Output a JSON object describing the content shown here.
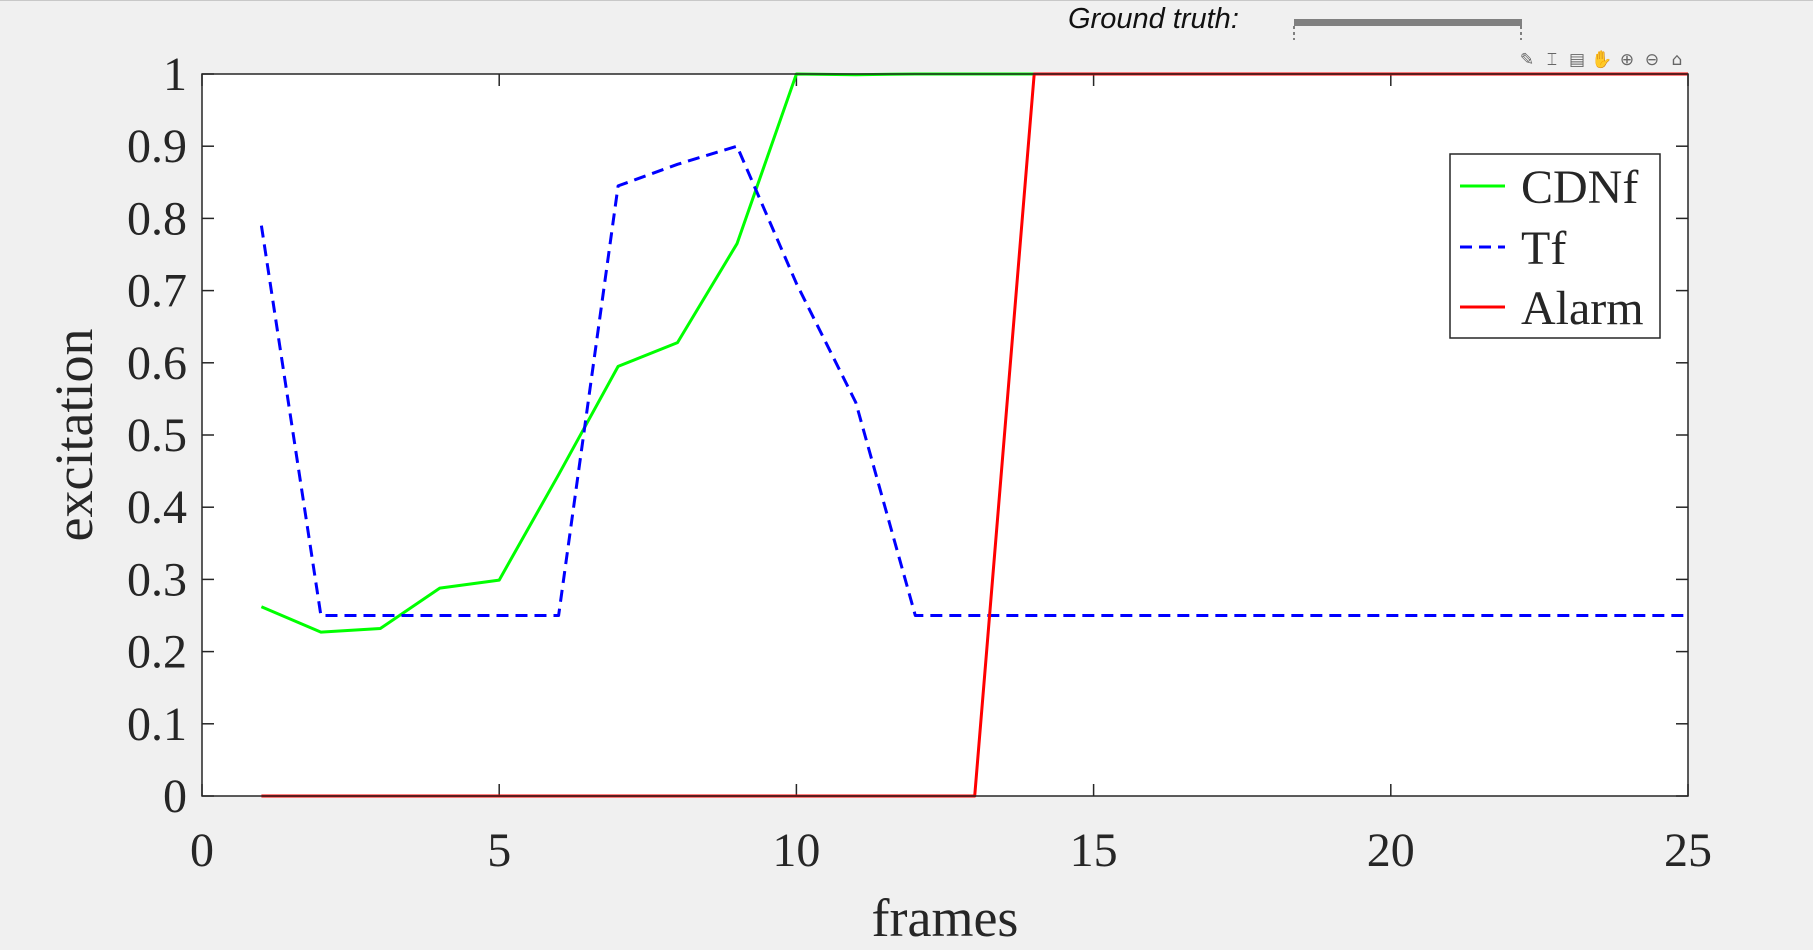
{
  "header": {
    "ground_truth_label": "Ground truth:"
  },
  "toolbar": {
    "icons": [
      {
        "name": "brush-icon",
        "glyph": "✎"
      },
      {
        "name": "datatip-icon",
        "glyph": "⌶"
      },
      {
        "name": "insert-legend-icon",
        "glyph": "▤"
      },
      {
        "name": "pan-hand-icon",
        "glyph": "✋"
      },
      {
        "name": "zoom-in-icon",
        "glyph": "⊕"
      },
      {
        "name": "zoom-out-icon",
        "glyph": "⊖"
      },
      {
        "name": "home-icon",
        "glyph": "⌂"
      }
    ]
  },
  "colors": {
    "background": "#f0f0f0",
    "plot_area": "#ffffff",
    "axis": "#262626",
    "ground_truth_bar": "#808080"
  },
  "chart_data": {
    "type": "line",
    "title": "",
    "xlabel": "frames",
    "ylabel": "excitation",
    "xlim": [
      0,
      25
    ],
    "ylim": [
      0,
      1
    ],
    "xticks": [
      0,
      5,
      10,
      15,
      20,
      25
    ],
    "yticks": [
      0,
      0.1,
      0.2,
      0.3,
      0.4,
      0.5,
      0.6,
      0.7,
      0.8,
      0.9,
      1
    ],
    "grid": false,
    "legend_position": "top-right",
    "ground_truth": {
      "x_start": 18.4,
      "x_end": 22.25
    },
    "series": [
      {
        "name": "CDNf",
        "color": "#00ff00",
        "style": "solid",
        "x": [
          1,
          2,
          3,
          4,
          5,
          6,
          7,
          8,
          9,
          10,
          11,
          12,
          13,
          14,
          15,
          16,
          17,
          18,
          19,
          20,
          21,
          22,
          23,
          24,
          25
        ],
        "y": [
          0.262,
          0.227,
          0.232,
          0.288,
          0.299,
          0.445,
          0.595,
          0.628,
          0.765,
          1.0,
          0.999,
          1.0,
          1.0,
          1.0,
          1.0,
          1.0,
          1.0,
          1.0,
          1.0,
          1.0,
          1.0,
          1.0,
          1.0,
          1.0,
          1.0
        ]
      },
      {
        "name": "Tf",
        "color": "#0000ff",
        "style": "dashed",
        "x": [
          1,
          2,
          3,
          4,
          5,
          6,
          7,
          8,
          9,
          10,
          11,
          12,
          13,
          14,
          15,
          16,
          17,
          18,
          19,
          20,
          21,
          22,
          23,
          24,
          25
        ],
        "y": [
          0.79,
          0.25,
          0.25,
          0.25,
          0.25,
          0.25,
          0.845,
          0.875,
          0.9,
          0.71,
          0.545,
          0.25,
          0.25,
          0.25,
          0.25,
          0.25,
          0.25,
          0.25,
          0.25,
          0.25,
          0.25,
          0.25,
          0.25,
          0.25,
          0.25
        ]
      },
      {
        "name": "Alarm",
        "color": "#ff0000",
        "style": "solid",
        "x": [
          1,
          2,
          3,
          4,
          5,
          6,
          7,
          8,
          9,
          10,
          11,
          12,
          13,
          14,
          15,
          16,
          17,
          18,
          19,
          20,
          21,
          22,
          23,
          24,
          25
        ],
        "y": [
          0,
          0,
          0,
          0,
          0,
          0,
          0,
          0,
          0,
          0,
          0,
          0,
          0,
          1,
          1,
          1,
          1,
          1,
          1,
          1,
          1,
          1,
          1,
          1,
          1
        ]
      }
    ]
  }
}
